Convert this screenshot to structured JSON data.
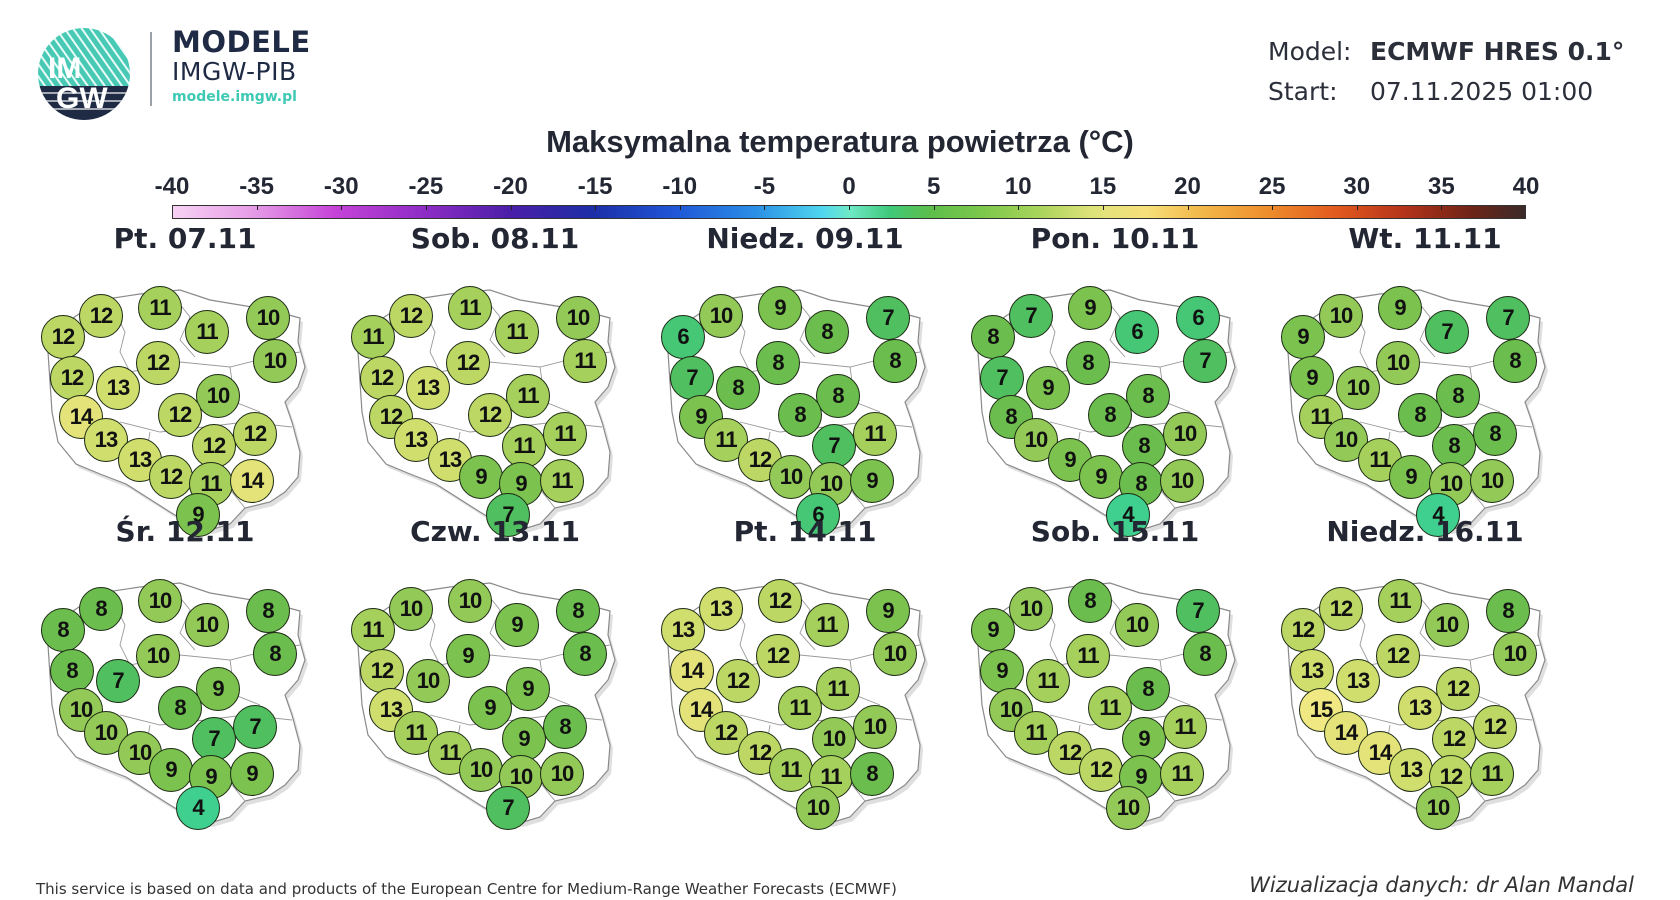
{
  "header": {
    "logo_text_top": "IM",
    "logo_text_bottom": "GW",
    "brand_title": "MODELE",
    "brand_subtitle": "IMGW-PIB",
    "brand_url": "modele.imgw.pl",
    "model_label": "Model:",
    "model_value": "ECMWF HRES 0.1°",
    "start_label": "Start:",
    "start_value": "07.11.2025 01:00"
  },
  "title": "Maksymalna temperatura powietrza (°C)",
  "legend": {
    "ticks": [
      "-40",
      "-35",
      "-30",
      "-25",
      "-20",
      "-15",
      "-10",
      "-5",
      "0",
      "5",
      "10",
      "15",
      "20",
      "25",
      "30",
      "35",
      "40"
    ],
    "min": -40,
    "max": 40
  },
  "colors": {
    "t4": "#3fd08f",
    "t6": "#45c776",
    "t7": "#4fbf5f",
    "t8": "#6bbd4e",
    "t9": "#7cc24f",
    "t10": "#93c957",
    "t11": "#a6d05c",
    "t12": "#bcd764",
    "t13": "#d0de6e",
    "t14": "#e4e37a",
    "t15": "#f0e882"
  },
  "panels": [
    {
      "label": "Pt. 07.11",
      "values": [
        12,
        12,
        11,
        11,
        10,
        10,
        12,
        12,
        13,
        10,
        14,
        12,
        13,
        12,
        12,
        13,
        12,
        11,
        14,
        9
      ]
    },
    {
      "label": "Sob. 08.11",
      "values": [
        11,
        12,
        11,
        11,
        10,
        11,
        12,
        12,
        13,
        11,
        12,
        12,
        13,
        11,
        11,
        13,
        9,
        9,
        11,
        7
      ]
    },
    {
      "label": "Niedz. 09.11",
      "values": [
        6,
        10,
        9,
        8,
        7,
        8,
        8,
        7,
        8,
        8,
        9,
        8,
        11,
        7,
        11,
        12,
        10,
        10,
        9,
        6
      ]
    },
    {
      "label": "Pon. 10.11",
      "values": [
        8,
        7,
        9,
        6,
        6,
        7,
        8,
        7,
        9,
        8,
        8,
        8,
        10,
        8,
        10,
        9,
        9,
        8,
        10,
        4
      ]
    },
    {
      "label": "Wt. 11.11",
      "values": [
        9,
        10,
        9,
        7,
        7,
        8,
        10,
        9,
        10,
        8,
        11,
        8,
        10,
        8,
        8,
        11,
        9,
        10,
        10,
        4
      ]
    },
    {
      "label": "Śr. 12.11",
      "values": [
        8,
        8,
        10,
        10,
        8,
        8,
        10,
        8,
        7,
        9,
        10,
        8,
        10,
        7,
        7,
        10,
        9,
        9,
        9,
        4
      ]
    },
    {
      "label": "Czw. 13.11",
      "values": [
        11,
        10,
        10,
        9,
        8,
        8,
        9,
        12,
        10,
        9,
        13,
        9,
        11,
        9,
        8,
        11,
        10,
        10,
        10,
        7
      ]
    },
    {
      "label": "Pt. 14.11",
      "values": [
        13,
        13,
        12,
        11,
        9,
        10,
        12,
        14,
        12,
        11,
        14,
        11,
        12,
        10,
        10,
        12,
        11,
        11,
        8,
        10
      ]
    },
    {
      "label": "Sob. 15.11",
      "values": [
        9,
        10,
        8,
        10,
        7,
        8,
        11,
        9,
        11,
        8,
        10,
        11,
        11,
        9,
        11,
        12,
        12,
        9,
        11,
        10
      ]
    },
    {
      "label": "Niedz. 16.11",
      "values": [
        12,
        12,
        11,
        10,
        8,
        10,
        12,
        13,
        13,
        12,
        15,
        13,
        14,
        12,
        12,
        14,
        13,
        12,
        11,
        10
      ]
    }
  ],
  "footer": {
    "attribution": "This service is based on data and products of the European Centre for Medium-Range Weather Forecasts (ECMWF)",
    "credit": "Wizualizacja danych: dr Alan Mandal"
  }
}
